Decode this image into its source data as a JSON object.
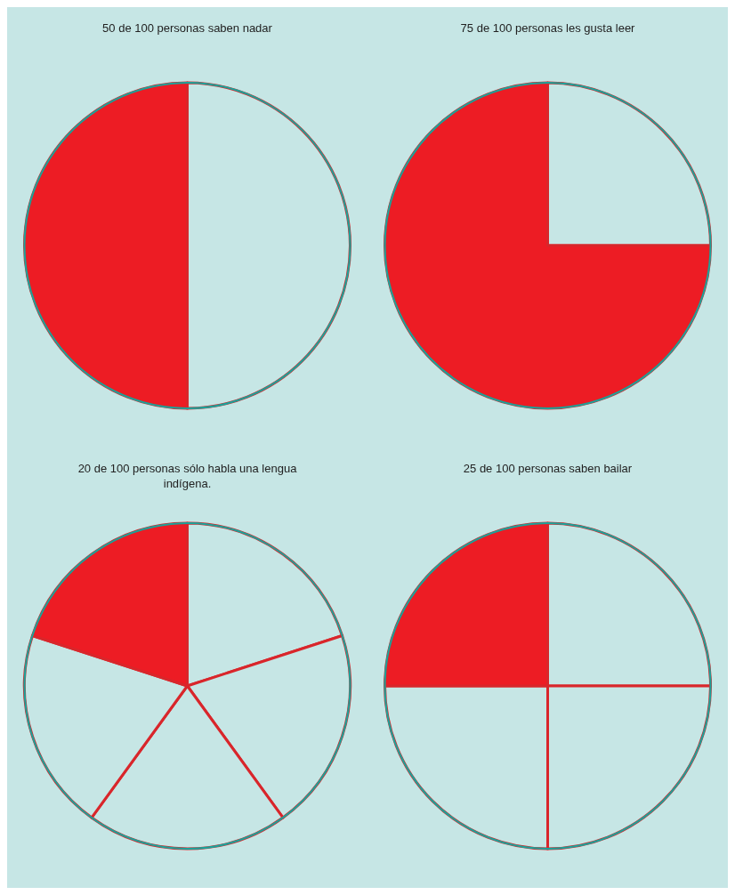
{
  "chart_data": [
    {
      "type": "pie",
      "title": "50 de 100 personas saben nadar",
      "categories": [
        null,
        null
      ],
      "values": [
        50,
        50
      ],
      "colors": [
        "#c6e6e5",
        "#ed1c24"
      ]
    },
    {
      "type": "pie",
      "title": "75 de 100 personas les gusta leer",
      "categories": [
        null,
        null
      ],
      "values": [
        25,
        75
      ],
      "colors": [
        "#c6e6e5",
        "#ed1c24"
      ]
    },
    {
      "type": "pie",
      "title": "20 de 100 personas sólo habla una lengua\nindígena.",
      "categories": [
        null,
        null,
        null,
        null,
        null
      ],
      "values": [
        20,
        20,
        20,
        20,
        20
      ],
      "colors": [
        "#c6e6e5",
        "#c6e6e5",
        "#c6e6e5",
        "#c6e6e5",
        "#ed1c24"
      ]
    },
    {
      "type": "pie",
      "title": "25 de 100 personas saben bailar",
      "categories": [
        null,
        null,
        null,
        null
      ],
      "values": [
        25,
        25,
        25,
        25
      ],
      "colors": [
        "#c6e6e5",
        "#c6e6e5",
        "#c6e6e5",
        "#ed1c24"
      ]
    }
  ]
}
